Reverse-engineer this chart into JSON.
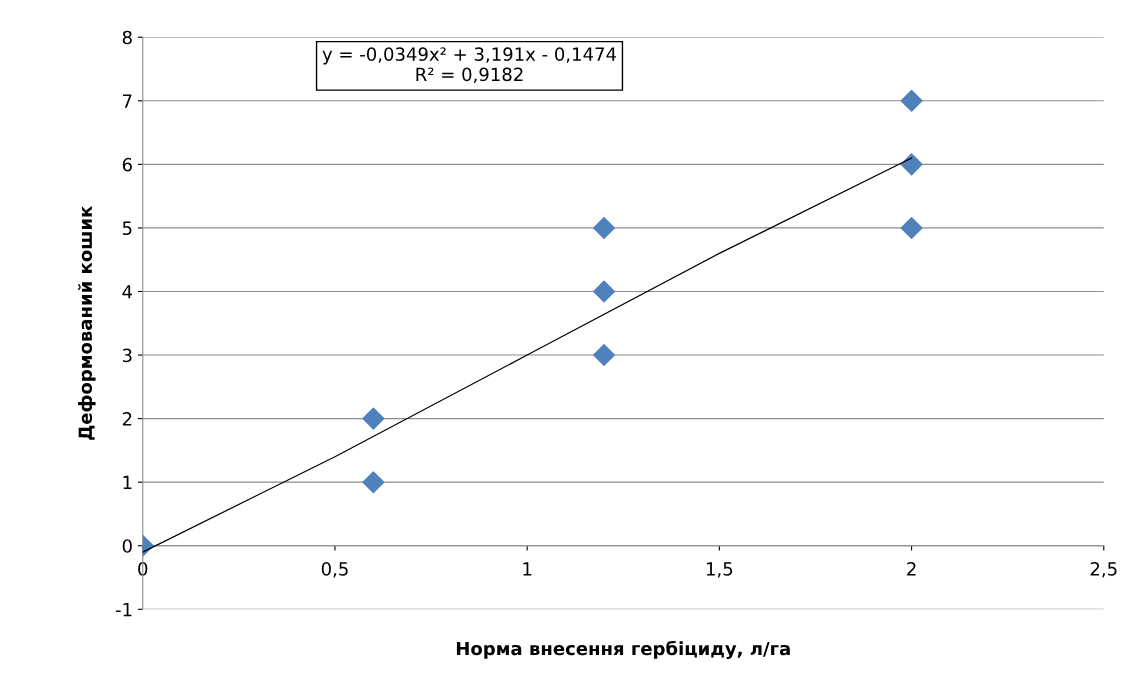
{
  "chart_data": {
    "type": "scatter",
    "xlabel": "Норма внесення гербіциду, л/га",
    "ylabel": "Деформований кошик",
    "series": [
      {
        "color": "#4f81bd",
        "marker": "diamond",
        "x": [
          0,
          0.6,
          0.6,
          1.2,
          1.2,
          1.2,
          2,
          2,
          2
        ],
        "values": [
          0,
          1,
          2,
          3,
          4,
          5,
          5,
          6,
          7
        ]
      },
      {
        "type": "line",
        "color": "#000000",
        "marker": "none",
        "line_style": "solid",
        "x": [
          0,
          0.5,
          1,
          1.5,
          2
        ],
        "values": [
          -0.1,
          1.4,
          3.0,
          4.6,
          6.1
        ]
      }
    ],
    "xlim": [
      0,
      2.5
    ],
    "xticks": [
      0,
      {
        "value": 0.5,
        "label": "0,5"
      },
      1,
      {
        "value": 1.5,
        "label": "1,5"
      },
      2,
      {
        "value": 2.5,
        "label": "2,5"
      }
    ],
    "ylim": [
      -1,
      8
    ],
    "yticks": [
      -1,
      0,
      1,
      2,
      3,
      4,
      5,
      6,
      7,
      8
    ],
    "grid": "y",
    "legend": false,
    "annotations": [
      "y = -0,0349x² + 3,191x - 0,1474\nR² = 0,9182"
    ]
  }
}
